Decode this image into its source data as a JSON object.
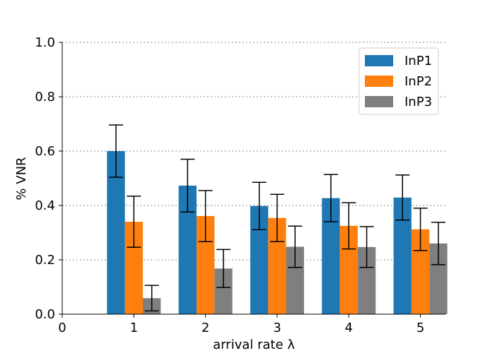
{
  "chart_data": {
    "type": "bar",
    "title": "",
    "xlabel": "arrival rate λ",
    "ylabel": "% VNR",
    "xlim": [
      0,
      5.35
    ],
    "ylim": [
      0,
      1.0
    ],
    "x_ticks": [
      0,
      1,
      2,
      3,
      4,
      5
    ],
    "y_ticks": [
      0.0,
      0.2,
      0.4,
      0.6,
      0.8,
      1.0
    ],
    "categories": [
      1,
      2,
      3,
      4,
      5
    ],
    "grid": "horizontal dotted",
    "legend_position": "top-right",
    "series": [
      {
        "name": "InP1",
        "color": "#1f77b4",
        "values": [
          0.6,
          0.473,
          0.398,
          0.427,
          0.429
        ],
        "error": [
          0.096,
          0.097,
          0.087,
          0.087,
          0.083
        ]
      },
      {
        "name": "InP2",
        "color": "#ff7f0e",
        "values": [
          0.34,
          0.361,
          0.354,
          0.325,
          0.312
        ],
        "error": [
          0.094,
          0.094,
          0.087,
          0.085,
          0.078
        ]
      },
      {
        "name": "InP3",
        "color": "#7f7f7f",
        "values": [
          0.059,
          0.168,
          0.248,
          0.247,
          0.26
        ],
        "error": [
          0.047,
          0.07,
          0.076,
          0.075,
          0.078
        ]
      }
    ]
  }
}
